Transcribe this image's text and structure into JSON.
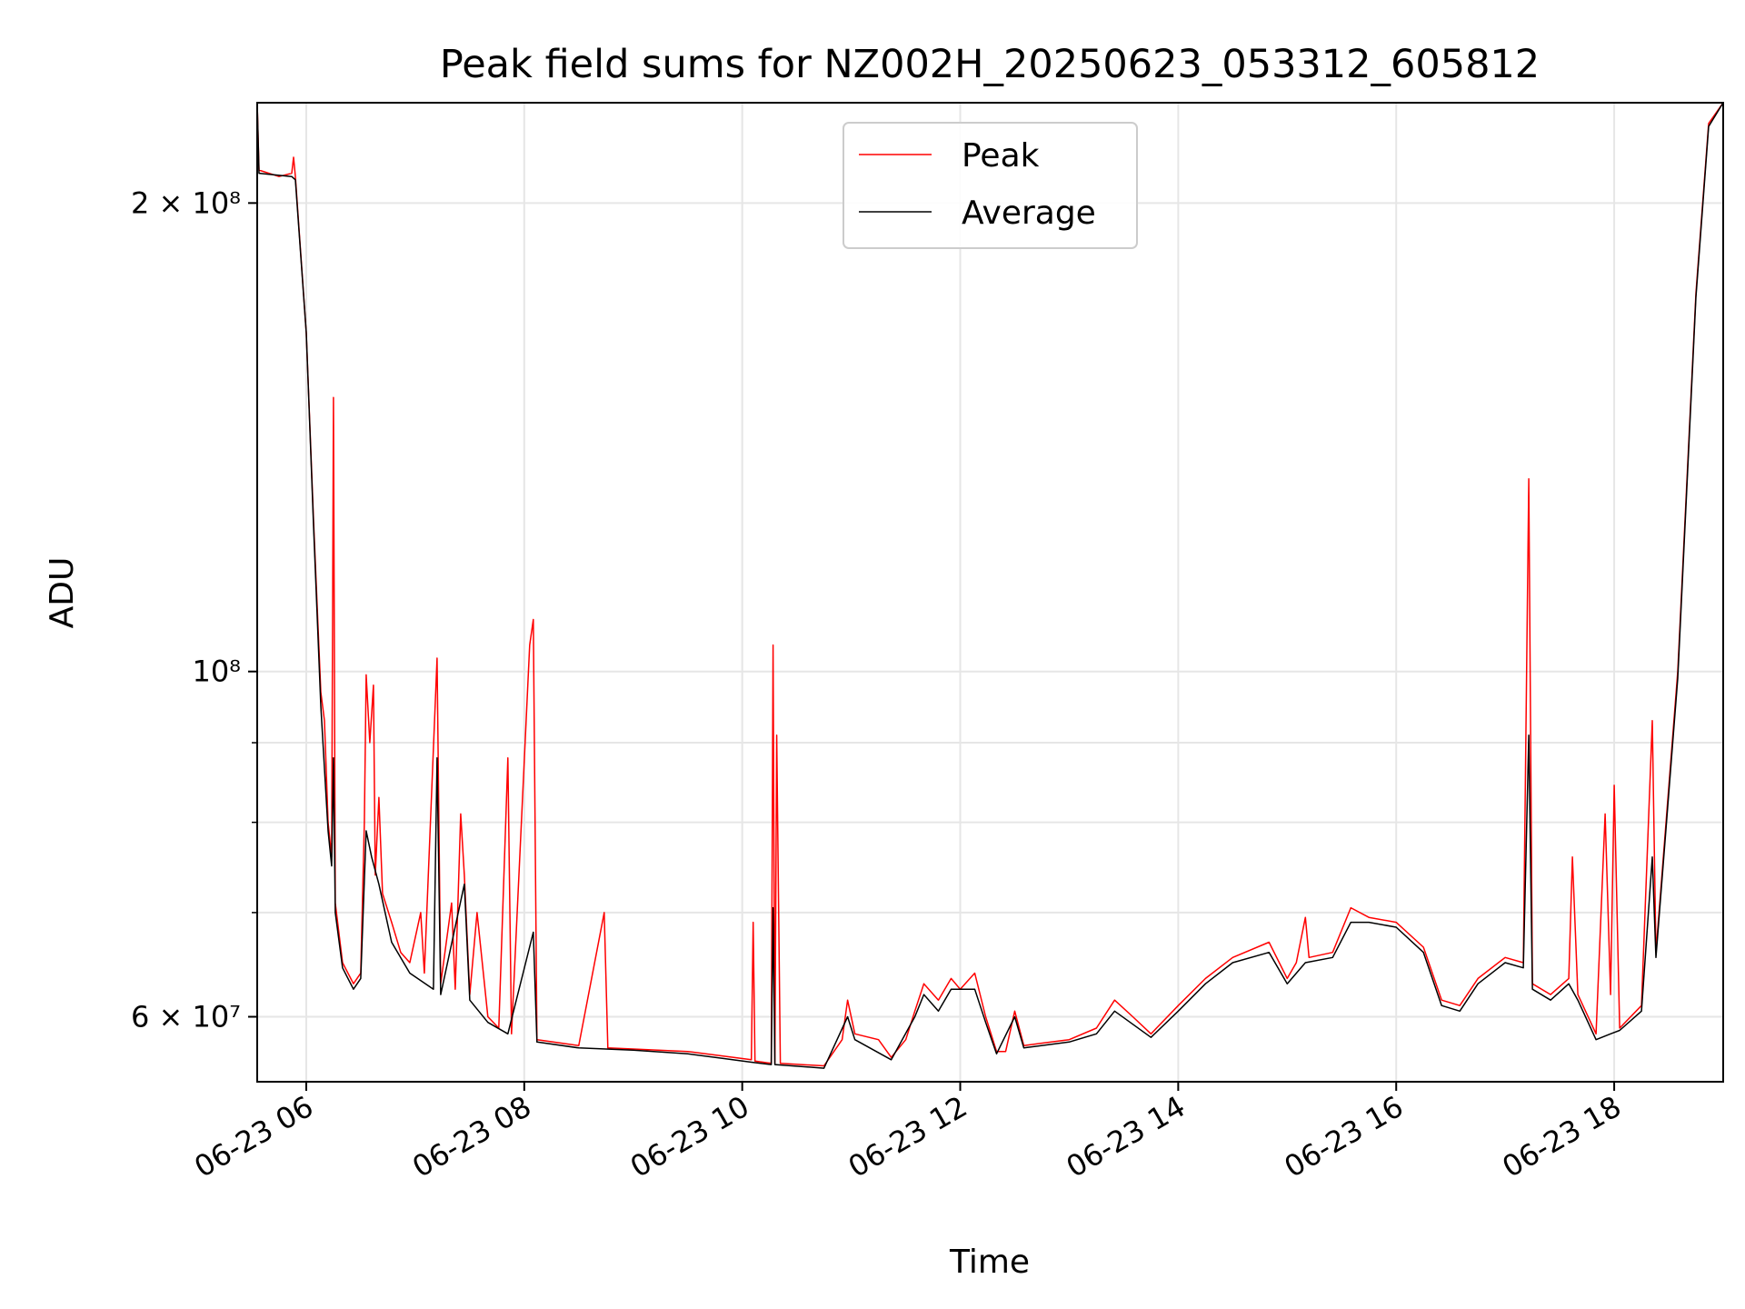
{
  "chart_data": {
    "type": "line",
    "title": "Peak field sums for NZ002H_20250623_053312_605812",
    "xlabel": "Time",
    "ylabel": "ADU",
    "yscale": "log",
    "grid": true,
    "legend_position": "upper center",
    "xlim": [
      "2025-06-23 05:33",
      "2025-06-23 19:00"
    ],
    "ylim": [
      54500000,
      232000000
    ],
    "x_ticks": [
      {
        "value": "2025-06-23 06:00",
        "label": "06-23 06"
      },
      {
        "value": "2025-06-23 08:00",
        "label": "06-23 08"
      },
      {
        "value": "2025-06-23 10:00",
        "label": "06-23 10"
      },
      {
        "value": "2025-06-23 12:00",
        "label": "06-23 12"
      },
      {
        "value": "2025-06-23 14:00",
        "label": "06-23 14"
      },
      {
        "value": "2025-06-23 16:00",
        "label": "06-23 16"
      },
      {
        "value": "2025-06-23 18:00",
        "label": "06-23 18"
      }
    ],
    "y_major_ticks": [
      {
        "value": 60000000,
        "label": "6 × 10⁷"
      },
      {
        "value": 100000000,
        "label": "10⁸"
      },
      {
        "value": 200000000,
        "label": "2 × 10⁸"
      }
    ],
    "y_minor_ticks": [
      70000000,
      80000000,
      90000000
    ],
    "series": [
      {
        "name": "Peak",
        "color": "#ff0000",
        "points": [
          [
            "2025-06-23 05:33",
            232000000
          ],
          [
            "2025-06-23 05:34",
            210000000
          ],
          [
            "2025-06-23 05:45",
            208000000
          ],
          [
            "2025-06-23 05:52",
            209000000
          ],
          [
            "2025-06-23 05:53",
            214000000
          ],
          [
            "2025-06-23 05:54",
            208000000
          ],
          [
            "2025-06-23 06:00",
            165000000
          ],
          [
            "2025-06-23 06:04",
            125000000
          ],
          [
            "2025-06-23 06:08",
            97000000
          ],
          [
            "2025-06-23 06:10",
            93000000
          ],
          [
            "2025-06-23 06:12",
            80000000
          ],
          [
            "2025-06-23 06:14",
            76000000
          ],
          [
            "2025-06-23 06:15",
            150000000
          ],
          [
            "2025-06-23 06:16",
            71000000
          ],
          [
            "2025-06-23 06:20",
            65000000
          ],
          [
            "2025-06-23 06:26",
            63000000
          ],
          [
            "2025-06-23 06:30",
            64000000
          ],
          [
            "2025-06-23 06:32",
            80000000
          ],
          [
            "2025-06-23 06:33",
            99500000
          ],
          [
            "2025-06-23 06:35",
            90000000
          ],
          [
            "2025-06-23 06:37",
            98000000
          ],
          [
            "2025-06-23 06:38",
            74000000
          ],
          [
            "2025-06-23 06:40",
            83000000
          ],
          [
            "2025-06-23 06:42",
            72000000
          ],
          [
            "2025-06-23 06:47",
            69000000
          ],
          [
            "2025-06-23 06:52",
            66000000
          ],
          [
            "2025-06-23 06:57",
            65000000
          ],
          [
            "2025-06-23 07:03",
            70000000
          ],
          [
            "2025-06-23 07:05",
            64000000
          ],
          [
            "2025-06-23 07:12",
            102000000
          ],
          [
            "2025-06-23 07:14",
            63000000
          ],
          [
            "2025-06-23 07:20",
            71000000
          ],
          [
            "2025-06-23 07:22",
            62500000
          ],
          [
            "2025-06-23 07:25",
            81000000
          ],
          [
            "2025-06-23 07:27",
            74000000
          ],
          [
            "2025-06-23 07:30",
            62000000
          ],
          [
            "2025-06-23 07:34",
            70000000
          ],
          [
            "2025-06-23 07:40",
            60000000
          ],
          [
            "2025-06-23 07:46",
            59000000
          ],
          [
            "2025-06-23 07:51",
            88000000
          ],
          [
            "2025-06-23 07:53",
            58500000
          ],
          [
            "2025-06-23 08:03",
            104000000
          ],
          [
            "2025-06-23 08:05",
            108000000
          ],
          [
            "2025-06-23 08:07",
            58000000
          ],
          [
            "2025-06-23 08:30",
            57500000
          ],
          [
            "2025-06-23 08:44",
            70000000
          ],
          [
            "2025-06-23 08:46",
            57300000
          ],
          [
            "2025-06-23 09:00",
            57200000
          ],
          [
            "2025-06-23 09:30",
            57000000
          ],
          [
            "2025-06-23 09:50",
            56600000
          ],
          [
            "2025-06-23 10:05",
            56300000
          ],
          [
            "2025-06-23 10:06",
            69000000
          ],
          [
            "2025-06-23 10:07",
            56200000
          ],
          [
            "2025-06-23 10:16",
            56000000
          ],
          [
            "2025-06-23 10:17",
            104000000
          ],
          [
            "2025-06-23 10:18",
            56000000
          ],
          [
            "2025-06-23 10:19",
            91000000
          ],
          [
            "2025-06-23 10:21",
            56000000
          ],
          [
            "2025-06-23 10:45",
            55800000
          ],
          [
            "2025-06-23 10:55",
            58000000
          ],
          [
            "2025-06-23 10:58",
            61500000
          ],
          [
            "2025-06-23 11:02",
            58500000
          ],
          [
            "2025-06-23 11:15",
            58000000
          ],
          [
            "2025-06-23 11:22",
            56500000
          ],
          [
            "2025-06-23 11:30",
            58000000
          ],
          [
            "2025-06-23 11:35",
            60500000
          ],
          [
            "2025-06-23 11:40",
            63000000
          ],
          [
            "2025-06-23 11:48",
            61500000
          ],
          [
            "2025-06-23 11:55",
            63500000
          ],
          [
            "2025-06-23 12:00",
            62500000
          ],
          [
            "2025-06-23 12:08",
            64000000
          ],
          [
            "2025-06-23 12:14",
            60000000
          ],
          [
            "2025-06-23 12:20",
            57000000
          ],
          [
            "2025-06-23 12:25",
            57000000
          ],
          [
            "2025-06-23 12:30",
            60500000
          ],
          [
            "2025-06-23 12:35",
            57500000
          ],
          [
            "2025-06-23 13:00",
            58000000
          ],
          [
            "2025-06-23 13:15",
            59000000
          ],
          [
            "2025-06-23 13:25",
            61500000
          ],
          [
            "2025-06-23 13:35",
            60000000
          ],
          [
            "2025-06-23 13:45",
            58500000
          ],
          [
            "2025-06-23 14:00",
            61000000
          ],
          [
            "2025-06-23 14:15",
            63500000
          ],
          [
            "2025-06-23 14:30",
            65500000
          ],
          [
            "2025-06-23 14:50",
            67000000
          ],
          [
            "2025-06-23 15:00",
            63500000
          ],
          [
            "2025-06-23 15:05",
            65000000
          ],
          [
            "2025-06-23 15:10",
            69500000
          ],
          [
            "2025-06-23 15:12",
            65500000
          ],
          [
            "2025-06-23 15:25",
            66000000
          ],
          [
            "2025-06-23 15:35",
            70500000
          ],
          [
            "2025-06-23 15:45",
            69500000
          ],
          [
            "2025-06-23 16:00",
            69000000
          ],
          [
            "2025-06-23 16:15",
            66500000
          ],
          [
            "2025-06-23 16:25",
            61500000
          ],
          [
            "2025-06-23 16:35",
            61000000
          ],
          [
            "2025-06-23 16:45",
            63500000
          ],
          [
            "2025-06-23 17:00",
            65500000
          ],
          [
            "2025-06-23 17:10",
            65000000
          ],
          [
            "2025-06-23 17:13",
            133000000
          ],
          [
            "2025-06-23 17:15",
            63000000
          ],
          [
            "2025-06-23 17:25",
            62000000
          ],
          [
            "2025-06-23 17:35",
            63500000
          ],
          [
            "2025-06-23 17:37",
            76000000
          ],
          [
            "2025-06-23 17:40",
            62000000
          ],
          [
            "2025-06-23 17:50",
            58500000
          ],
          [
            "2025-06-23 17:55",
            81000000
          ],
          [
            "2025-06-23 17:58",
            62000000
          ],
          [
            "2025-06-23 18:00",
            84500000
          ],
          [
            "2025-06-23 18:03",
            59000000
          ],
          [
            "2025-06-23 18:15",
            61000000
          ],
          [
            "2025-06-23 18:21",
            93000000
          ],
          [
            "2025-06-23 18:23",
            66000000
          ],
          [
            "2025-06-23 18:35",
            100000000
          ],
          [
            "2025-06-23 18:45",
            175000000
          ],
          [
            "2025-06-23 18:52",
            225000000
          ],
          [
            "2025-06-23 19:00",
            232000000
          ]
        ]
      },
      {
        "name": "Average",
        "color": "#000000",
        "points": [
          [
            "2025-06-23 05:33",
            232000000
          ],
          [
            "2025-06-23 05:34",
            209000000
          ],
          [
            "2025-06-23 05:52",
            208000000
          ],
          [
            "2025-06-23 05:54",
            207000000
          ],
          [
            "2025-06-23 06:00",
            165000000
          ],
          [
            "2025-06-23 06:04",
            124000000
          ],
          [
            "2025-06-23 06:08",
            95000000
          ],
          [
            "2025-06-23 06:12",
            79000000
          ],
          [
            "2025-06-23 06:14",
            75000000
          ],
          [
            "2025-06-23 06:15",
            88000000
          ],
          [
            "2025-06-23 06:16",
            70000000
          ],
          [
            "2025-06-23 06:20",
            64500000
          ],
          [
            "2025-06-23 06:26",
            62500000
          ],
          [
            "2025-06-23 06:30",
            63500000
          ],
          [
            "2025-06-23 06:33",
            79000000
          ],
          [
            "2025-06-23 06:36",
            76000000
          ],
          [
            "2025-06-23 06:40",
            73000000
          ],
          [
            "2025-06-23 06:47",
            67000000
          ],
          [
            "2025-06-23 06:57",
            64000000
          ],
          [
            "2025-06-23 07:10",
            62500000
          ],
          [
            "2025-06-23 07:12",
            88000000
          ],
          [
            "2025-06-23 07:14",
            62000000
          ],
          [
            "2025-06-23 07:27",
            73000000
          ],
          [
            "2025-06-23 07:30",
            61500000
          ],
          [
            "2025-06-23 07:40",
            59500000
          ],
          [
            "2025-06-23 07:51",
            58500000
          ],
          [
            "2025-06-23 08:05",
            68000000
          ],
          [
            "2025-06-23 08:07",
            57800000
          ],
          [
            "2025-06-23 08:30",
            57300000
          ],
          [
            "2025-06-23 09:00",
            57100000
          ],
          [
            "2025-06-23 09:30",
            56800000
          ],
          [
            "2025-06-23 09:50",
            56400000
          ],
          [
            "2025-06-23 10:05",
            56100000
          ],
          [
            "2025-06-23 10:16",
            55900000
          ],
          [
            "2025-06-23 10:17",
            70500000
          ],
          [
            "2025-06-23 10:18",
            55900000
          ],
          [
            "2025-06-23 10:45",
            55600000
          ],
          [
            "2025-06-23 10:58",
            60000000
          ],
          [
            "2025-06-23 11:02",
            58000000
          ],
          [
            "2025-06-23 11:22",
            56300000
          ],
          [
            "2025-06-23 11:35",
            60000000
          ],
          [
            "2025-06-23 11:40",
            62000000
          ],
          [
            "2025-06-23 11:48",
            60500000
          ],
          [
            "2025-06-23 11:55",
            62500000
          ],
          [
            "2025-06-23 12:08",
            62500000
          ],
          [
            "2025-06-23 12:14",
            59500000
          ],
          [
            "2025-06-23 12:20",
            56800000
          ],
          [
            "2025-06-23 12:30",
            60000000
          ],
          [
            "2025-06-23 12:35",
            57300000
          ],
          [
            "2025-06-23 13:00",
            57800000
          ],
          [
            "2025-06-23 13:15",
            58500000
          ],
          [
            "2025-06-23 13:25",
            60500000
          ],
          [
            "2025-06-23 13:45",
            58200000
          ],
          [
            "2025-06-23 14:00",
            60500000
          ],
          [
            "2025-06-23 14:15",
            63000000
          ],
          [
            "2025-06-23 14:30",
            65000000
          ],
          [
            "2025-06-23 14:50",
            66000000
          ],
          [
            "2025-06-23 15:00",
            63000000
          ],
          [
            "2025-06-23 15:10",
            65000000
          ],
          [
            "2025-06-23 15:25",
            65500000
          ],
          [
            "2025-06-23 15:35",
            69000000
          ],
          [
            "2025-06-23 15:45",
            69000000
          ],
          [
            "2025-06-23 16:00",
            68500000
          ],
          [
            "2025-06-23 16:15",
            66000000
          ],
          [
            "2025-06-23 16:25",
            61000000
          ],
          [
            "2025-06-23 16:35",
            60500000
          ],
          [
            "2025-06-23 16:45",
            63000000
          ],
          [
            "2025-06-23 17:00",
            65000000
          ],
          [
            "2025-06-23 17:10",
            64500000
          ],
          [
            "2025-06-23 17:13",
            91000000
          ],
          [
            "2025-06-23 17:15",
            62500000
          ],
          [
            "2025-06-23 17:25",
            61500000
          ],
          [
            "2025-06-23 17:35",
            63000000
          ],
          [
            "2025-06-23 17:40",
            61500000
          ],
          [
            "2025-06-23 17:50",
            58000000
          ],
          [
            "2025-06-23 17:58",
            58500000
          ],
          [
            "2025-06-23 18:03",
            58800000
          ],
          [
            "2025-06-23 18:15",
            60500000
          ],
          [
            "2025-06-23 18:21",
            76000000
          ],
          [
            "2025-06-23 18:23",
            65500000
          ],
          [
            "2025-06-23 18:35",
            99000000
          ],
          [
            "2025-06-23 18:45",
            174000000
          ],
          [
            "2025-06-23 18:52",
            224000000
          ],
          [
            "2025-06-23 19:00",
            232000000
          ]
        ]
      }
    ]
  }
}
